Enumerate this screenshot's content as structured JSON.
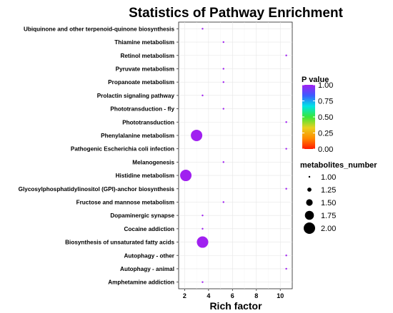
{
  "chart_data": {
    "type": "scatter",
    "title": "Statistics of Pathway Enrichment",
    "xlabel": "Rich factor",
    "ylabel": "",
    "xlim": [
      1.5,
      11
    ],
    "xticks": [
      2,
      4,
      6,
      8,
      10
    ],
    "grid": true,
    "categories": [
      "Ubiquinone and other terpenoid-quinone biosynthesis",
      "Thiamine metabolism",
      "Retinol metabolism",
      "Pyruvate metabolism",
      "Propanoate metabolism",
      "Prolactin signaling pathway",
      "Phototransduction - fly",
      "Phototransduction",
      "Phenylalanine metabolism",
      "Pathogenic Escherichia coli infection",
      "Melanogenesis",
      "Histidine metabolism",
      "Glycosylphosphatidylinositol (GPI)-anchor biosynthesis",
      "Fructose and mannose metabolism",
      "Dopaminergic synapse",
      "Cocaine addiction",
      "Biosynthesis of unsaturated fatty acids",
      "Autophagy - other",
      "Autophagy - animal",
      "Amphetamine addiction"
    ],
    "points": [
      {
        "pathway": "Ubiquinone and other terpenoid-quinone biosynthesis",
        "rich_factor": 3.5,
        "p_value": 1.0,
        "metabolites_number": 1
      },
      {
        "pathway": "Thiamine metabolism",
        "rich_factor": 5.25,
        "p_value": 1.0,
        "metabolites_number": 1
      },
      {
        "pathway": "Retinol metabolism",
        "rich_factor": 10.5,
        "p_value": 1.0,
        "metabolites_number": 1
      },
      {
        "pathway": "Pyruvate metabolism",
        "rich_factor": 5.25,
        "p_value": 1.0,
        "metabolites_number": 1
      },
      {
        "pathway": "Propanoate metabolism",
        "rich_factor": 5.25,
        "p_value": 1.0,
        "metabolites_number": 1
      },
      {
        "pathway": "Prolactin signaling pathway",
        "rich_factor": 3.5,
        "p_value": 1.0,
        "metabolites_number": 1
      },
      {
        "pathway": "Phototransduction - fly",
        "rich_factor": 5.25,
        "p_value": 1.0,
        "metabolites_number": 1
      },
      {
        "pathway": "Phototransduction",
        "rich_factor": 10.5,
        "p_value": 1.0,
        "metabolites_number": 1
      },
      {
        "pathway": "Phenylalanine metabolism",
        "rich_factor": 3.0,
        "p_value": 1.0,
        "metabolites_number": 2
      },
      {
        "pathway": "Pathogenic Escherichia coli infection",
        "rich_factor": 10.5,
        "p_value": 1.0,
        "metabolites_number": 1
      },
      {
        "pathway": "Melanogenesis",
        "rich_factor": 5.25,
        "p_value": 1.0,
        "metabolites_number": 1
      },
      {
        "pathway": "Histidine metabolism",
        "rich_factor": 2.1,
        "p_value": 1.0,
        "metabolites_number": 2
      },
      {
        "pathway": "Glycosylphosphatidylinositol (GPI)-anchor biosynthesis",
        "rich_factor": 10.5,
        "p_value": 1.0,
        "metabolites_number": 1
      },
      {
        "pathway": "Fructose and mannose metabolism",
        "rich_factor": 5.25,
        "p_value": 1.0,
        "metabolites_number": 1
      },
      {
        "pathway": "Dopaminergic synapse",
        "rich_factor": 3.5,
        "p_value": 1.0,
        "metabolites_number": 1
      },
      {
        "pathway": "Cocaine addiction",
        "rich_factor": 3.5,
        "p_value": 1.0,
        "metabolites_number": 1
      },
      {
        "pathway": "Biosynthesis of unsaturated fatty acids",
        "rich_factor": 3.5,
        "p_value": 1.0,
        "metabolites_number": 2
      },
      {
        "pathway": "Autophagy - other",
        "rich_factor": 10.5,
        "p_value": 1.0,
        "metabolites_number": 1
      },
      {
        "pathway": "Autophagy - animal",
        "rich_factor": 10.5,
        "p_value": 1.0,
        "metabolites_number": 1
      },
      {
        "pathway": "Amphetamine addiction",
        "rich_factor": 3.5,
        "p_value": 1.0,
        "metabolites_number": 1
      }
    ],
    "legend_color": {
      "title": "P value",
      "position": "right",
      "labels": [
        "1.00",
        "0.75",
        "0.50",
        "0.25",
        "0.00"
      ],
      "values": [
        1.0,
        0.75,
        0.5,
        0.25,
        0.0
      ],
      "gradient_colors": [
        "#a020f0",
        "#3a5cff",
        "#00e5e5",
        "#39e639",
        "#e8d21e",
        "#ff8c00",
        "#ff1a00"
      ]
    },
    "legend_size": {
      "title": "metabolites_number",
      "position": "right",
      "labels": [
        "1.00",
        "1.25",
        "1.50",
        "1.75",
        "2.00"
      ],
      "values": [
        1.0,
        1.25,
        1.5,
        1.75,
        2.0
      ]
    },
    "point_color": "#a020f0"
  }
}
